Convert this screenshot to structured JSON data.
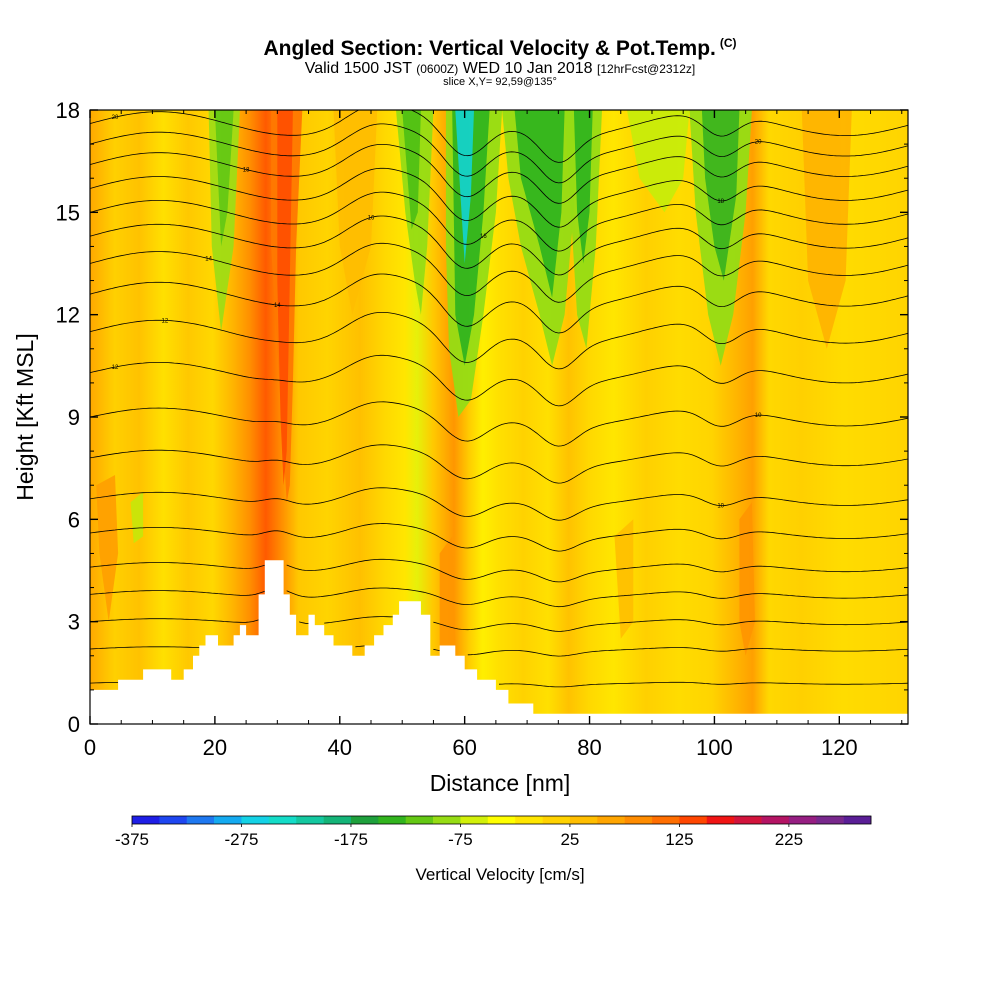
{
  "title": {
    "main": "Angled Section: Vertical Velocity & Pot.Temp.",
    "units": "(C)",
    "valid_prefix": "Valid 1500 JST",
    "valid_utc": "(0600Z)",
    "valid_date": "WED 10 Jan 2018",
    "forecast": "[12hrFcst@2312z]",
    "slice": "slice X,Y= 92,59@135°"
  },
  "chart_data": {
    "type": "heatmap",
    "xlabel": "Distance [nm]",
    "ylabel": "Height [Kft MSL]",
    "xlim": [
      0,
      131
    ],
    "ylim": [
      0,
      18
    ],
    "xticks": [
      0,
      20,
      40,
      60,
      80,
      100,
      120
    ],
    "yticks": [
      0,
      3,
      6,
      9,
      12,
      15,
      18
    ],
    "colorbar": {
      "label": "Vertical Velocity [cm/s]",
      "ticks": [
        "-375",
        "-275",
        "-175",
        "-75",
        "25",
        "125",
        "225"
      ],
      "colors": [
        "#1e1ee6",
        "#1e46f0",
        "#1e78f0",
        "#14aaf0",
        "#14d2e6",
        "#14dcc8",
        "#14c8a0",
        "#14b478",
        "#1ea03c",
        "#32b41e",
        "#64c814",
        "#96dc14",
        "#d2f00a",
        "#ffff00",
        "#ffe600",
        "#ffd200",
        "#ffbe00",
        "#ffa500",
        "#ff8c00",
        "#ff6e00",
        "#ff4600",
        "#f01414",
        "#d2143c",
        "#b41464",
        "#961e82",
        "#78288c",
        "#5a1e96"
      ]
    },
    "terrain": [
      [
        0,
        1.0
      ],
      [
        4.5,
        1.0
      ],
      [
        4.5,
        1.3
      ],
      [
        8.5,
        1.3
      ],
      [
        8.5,
        1.6
      ],
      [
        13,
        1.6
      ],
      [
        13,
        1.3
      ],
      [
        15,
        1.3
      ],
      [
        15,
        1.6
      ],
      [
        16.5,
        1.6
      ],
      [
        16.5,
        2.0
      ],
      [
        17.5,
        2.0
      ],
      [
        17.5,
        2.3
      ],
      [
        18.5,
        2.3
      ],
      [
        18.5,
        2.6
      ],
      [
        20.5,
        2.6
      ],
      [
        20.5,
        2.3
      ],
      [
        23,
        2.3
      ],
      [
        23,
        2.6
      ],
      [
        24,
        2.6
      ],
      [
        24,
        2.9
      ],
      [
        25,
        2.9
      ],
      [
        25,
        2.6
      ],
      [
        27,
        2.6
      ],
      [
        27,
        3.8
      ],
      [
        28,
        3.8
      ],
      [
        28,
        4.8
      ],
      [
        31,
        4.8
      ],
      [
        31,
        3.8
      ],
      [
        32,
        3.8
      ],
      [
        32,
        3.2
      ],
      [
        33,
        3.2
      ],
      [
        33,
        2.6
      ],
      [
        35,
        2.6
      ],
      [
        35,
        3.2
      ],
      [
        36,
        3.2
      ],
      [
        36,
        2.9
      ],
      [
        37.5,
        2.9
      ],
      [
        37.5,
        2.6
      ],
      [
        39,
        2.6
      ],
      [
        39,
        2.3
      ],
      [
        42,
        2.3
      ],
      [
        42,
        2.0
      ],
      [
        44,
        2.0
      ],
      [
        44,
        2.3
      ],
      [
        45.5,
        2.3
      ],
      [
        45.5,
        2.6
      ],
      [
        47,
        2.6
      ],
      [
        47,
        2.9
      ],
      [
        48.5,
        2.9
      ],
      [
        48.5,
        3.2
      ],
      [
        49.5,
        3.2
      ],
      [
        49.5,
        3.6
      ],
      [
        53,
        3.6
      ],
      [
        53,
        3.2
      ],
      [
        54.5,
        3.2
      ],
      [
        54.5,
        2.0
      ],
      [
        56,
        2.0
      ],
      [
        56,
        2.3
      ],
      [
        58.5,
        2.3
      ],
      [
        58.5,
        2.0
      ],
      [
        60,
        2.0
      ],
      [
        60,
        1.6
      ],
      [
        62,
        1.6
      ],
      [
        62,
        1.3
      ],
      [
        65,
        1.3
      ],
      [
        65,
        1.0
      ],
      [
        67,
        1.0
      ],
      [
        67,
        0.6
      ],
      [
        71,
        0.6
      ],
      [
        71,
        0.3
      ],
      [
        131,
        0.3
      ]
    ],
    "theta_levels": [
      {
        "base": 1.2,
        "label": ""
      },
      {
        "base": 2.2,
        "label": ""
      },
      {
        "base": 3.0,
        "label": "8"
      },
      {
        "base": 3.8,
        "label": ""
      },
      {
        "base": 4.6,
        "label": ""
      },
      {
        "base": 5.6,
        "label": ""
      },
      {
        "base": 6.6,
        "label": "10"
      },
      {
        "base": 7.8,
        "label": ""
      },
      {
        "base": 9.0,
        "label": "10"
      },
      {
        "base": 10.3,
        "label": "12"
      },
      {
        "base": 11.5,
        "label": "12"
      },
      {
        "base": 12.6,
        "label": "14"
      },
      {
        "base": 13.5,
        "label": "14"
      },
      {
        "base": 14.3,
        "label": "16"
      },
      {
        "base": 15.0,
        "label": "16"
      },
      {
        "base": 15.7,
        "label": "18"
      },
      {
        "base": 16.4,
        "label": "18"
      },
      {
        "base": 17.0,
        "label": "20"
      },
      {
        "base": 17.6,
        "label": "20"
      }
    ]
  }
}
